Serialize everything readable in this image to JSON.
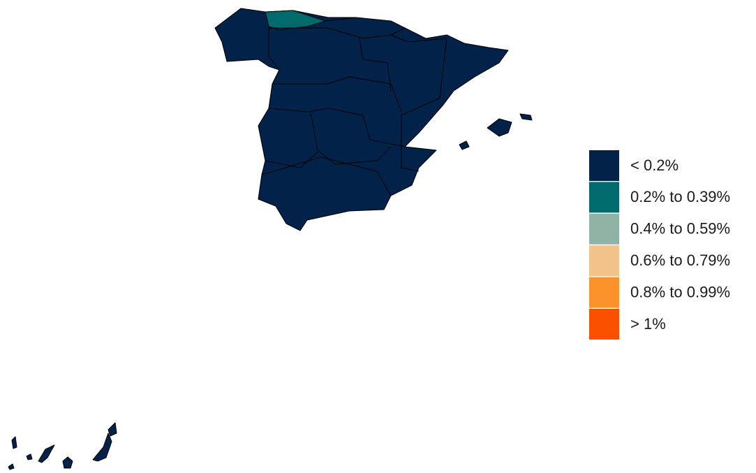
{
  "legend": {
    "items": [
      {
        "label": "< 0.2%",
        "color": "#022249"
      },
      {
        "label": "0.2% to 0.39%",
        "color": "#006a6c"
      },
      {
        "label": "0.4% to 0.59%",
        "color": "#8fb4a6"
      },
      {
        "label": "0.6% to 0.79%",
        "color": "#f2c28b"
      },
      {
        "label": "0.8% to 0.99%",
        "color": "#fb922b"
      },
      {
        "label": "> 1%",
        "color": "#fb5000"
      }
    ]
  }
}
